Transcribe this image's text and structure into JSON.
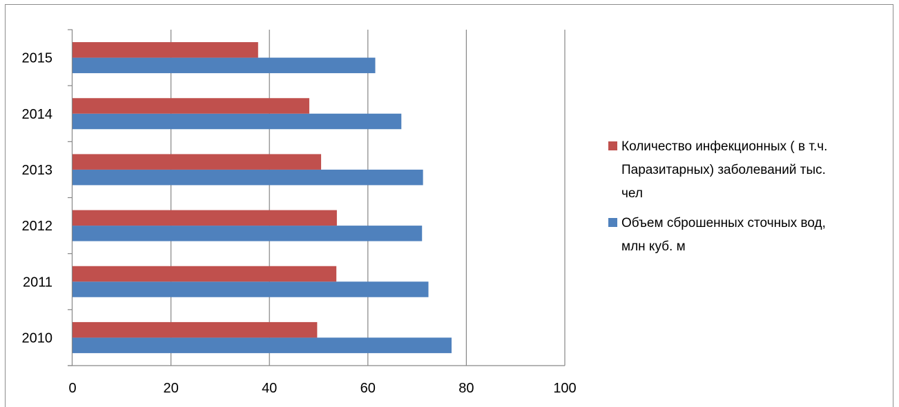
{
  "chart_data": {
    "type": "bar",
    "orientation": "horizontal",
    "categories": [
      "2010",
      "2011",
      "2012",
      "2013",
      "2014",
      "2015"
    ],
    "series": [
      {
        "name": "Объем сброшенных сточных вод, млн куб. м",
        "color": "#4f81bd",
        "values": [
          77,
          72.3,
          71,
          71.2,
          66.8,
          61.5
        ]
      },
      {
        "name": "Количество инфекционных ( в т.ч. Паразитарных) заболеваний тыс. чел",
        "color": "#c0504d",
        "values": [
          49.7,
          53.6,
          53.7,
          50.5,
          48.1,
          37.7
        ]
      }
    ],
    "xlim": [
      0,
      100
    ],
    "xticks": [
      0,
      20,
      40,
      60,
      80,
      100
    ],
    "grid": true,
    "legend": "right",
    "legend_entries": [
      {
        "series": 1,
        "lines": [
          "Количество инфекционных ( в т.ч.",
          "Паразитарных) заболеваний тыс.",
          "чел"
        ]
      },
      {
        "series": 0,
        "lines": [
          "Объем сброшенных сточных вод,",
          "млн куб. м"
        ]
      }
    ]
  }
}
